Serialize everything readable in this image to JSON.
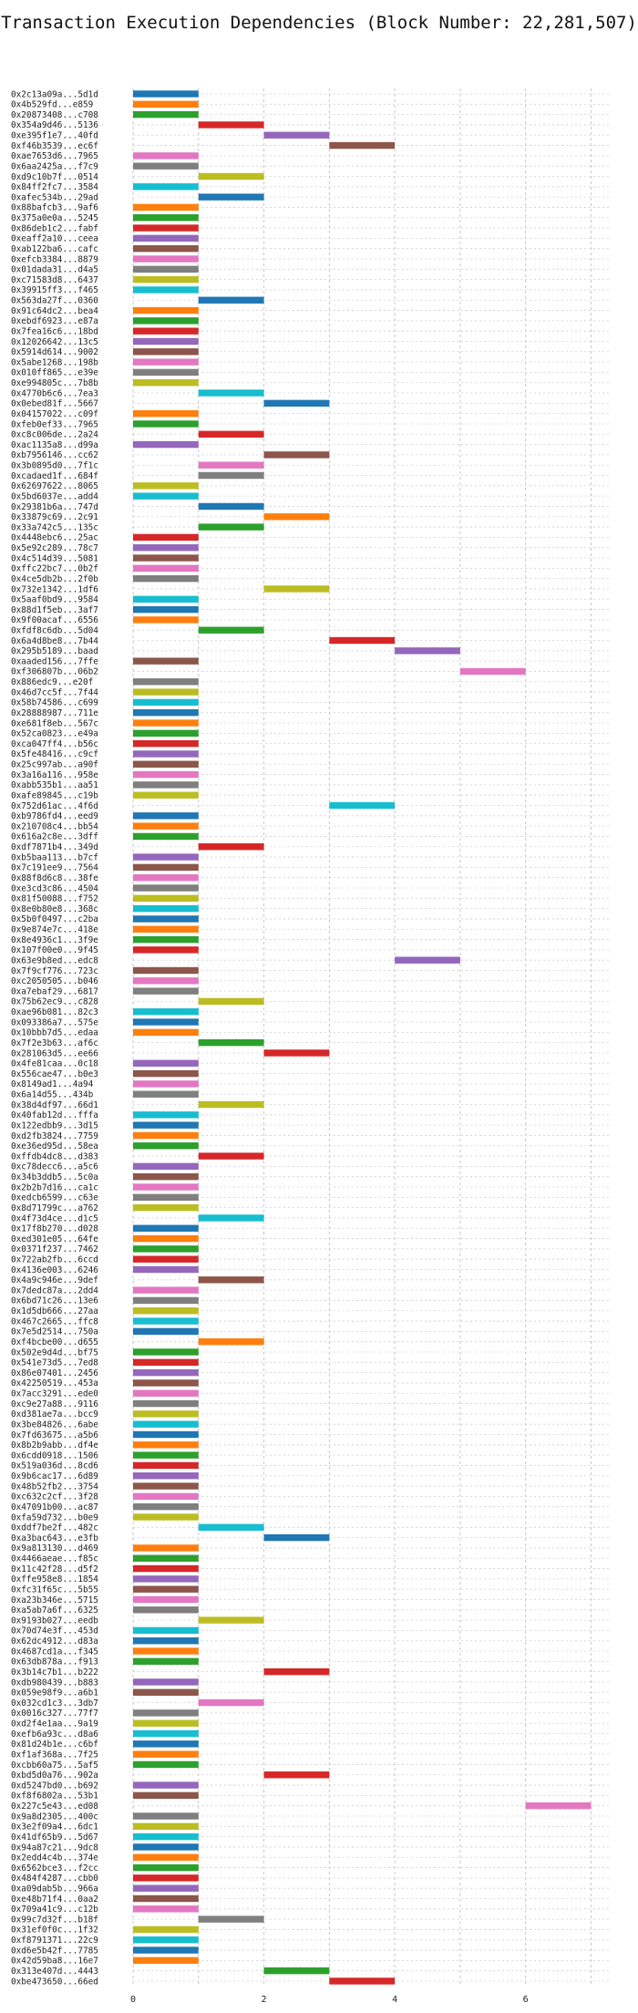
{
  "chart_data": {
    "type": "bar",
    "orientation": "horizontal",
    "title": "Transaction Execution Dependencies (Block Number: 22,281,507)",
    "xlabel": "",
    "ylabel": "",
    "xlim": [
      0,
      7.3
    ],
    "x_ticks": [
      0,
      2,
      4,
      6
    ],
    "grid": true,
    "legend": "none",
    "colors": [
      "#1f77b4",
      "#ff7f0e",
      "#2ca02c",
      "#d62728",
      "#9467bd",
      "#8c564b",
      "#e377c2",
      "#7f7f7f",
      "#bcbd22",
      "#17becf"
    ],
    "transactions": [
      {
        "label": "0x2c13a09a...5d1d",
        "start": 0,
        "end": 1
      },
      {
        "label": "0x4b529fd...e859",
        "start": 0,
        "end": 1
      },
      {
        "label": "0x20873408...c708",
        "start": 0,
        "end": 1
      },
      {
        "label": "0x354a9d46...5136",
        "start": 1,
        "end": 2
      },
      {
        "label": "0xe395f1e7...40fd",
        "start": 2,
        "end": 3
      },
      {
        "label": "0xf46b3539...ec6f",
        "start": 3,
        "end": 4
      },
      {
        "label": "0xae7653d6...7965",
        "start": 0,
        "end": 1
      },
      {
        "label": "0x6aa2425a...f7c9",
        "start": 0,
        "end": 1
      },
      {
        "label": "0xd9c10b7f...0514",
        "start": 1,
        "end": 2
      },
      {
        "label": "0x84ff2fc7...3584",
        "start": 0,
        "end": 1
      },
      {
        "label": "0xafec534b...29ad",
        "start": 1,
        "end": 2
      },
      {
        "label": "0x88bafcb3...9af6",
        "start": 0,
        "end": 1
      },
      {
        "label": "0x375a0e0a...5245",
        "start": 0,
        "end": 1
      },
      {
        "label": "0x86deb1c2...fabf",
        "start": 0,
        "end": 1
      },
      {
        "label": "0xeaff2a10...ceea",
        "start": 0,
        "end": 1
      },
      {
        "label": "0xab122ba6...cafc",
        "start": 0,
        "end": 1
      },
      {
        "label": "0xefcb3384...8879",
        "start": 0,
        "end": 1
      },
      {
        "label": "0x01dada31...d4a5",
        "start": 0,
        "end": 1
      },
      {
        "label": "0xc71583d8...6437",
        "start": 0,
        "end": 1
      },
      {
        "label": "0x39915ff3...f465",
        "start": 0,
        "end": 1
      },
      {
        "label": "0x563da27f...0360",
        "start": 1,
        "end": 2
      },
      {
        "label": "0x91c64dc2...bea4",
        "start": 0,
        "end": 1
      },
      {
        "label": "0xebdf6923...e87a",
        "start": 0,
        "end": 1
      },
      {
        "label": "0x7fea16c6...18bd",
        "start": 0,
        "end": 1
      },
      {
        "label": "0x12026642...13c5",
        "start": 0,
        "end": 1
      },
      {
        "label": "0x5914d614...9002",
        "start": 0,
        "end": 1
      },
      {
        "label": "0x5abe1268...198b",
        "start": 0,
        "end": 1
      },
      {
        "label": "0x010ff865...e39e",
        "start": 0,
        "end": 1
      },
      {
        "label": "0xe994805c...7b8b",
        "start": 0,
        "end": 1
      },
      {
        "label": "0x4770b6c6...7ea3",
        "start": 1,
        "end": 2
      },
      {
        "label": "0x0ebed81f...5667",
        "start": 2,
        "end": 3
      },
      {
        "label": "0x04157022...c09f",
        "start": 0,
        "end": 1
      },
      {
        "label": "0xfeb0ef33...7965",
        "start": 0,
        "end": 1
      },
      {
        "label": "0xc8c006de...2a24",
        "start": 1,
        "end": 2
      },
      {
        "label": "0xac1135a8...d99a",
        "start": 0,
        "end": 1
      },
      {
        "label": "0xb7956146...cc62",
        "start": 2,
        "end": 3
      },
      {
        "label": "0x3b0895d0...7f1c",
        "start": 1,
        "end": 2
      },
      {
        "label": "0xcadaed1f...684f",
        "start": 1,
        "end": 2
      },
      {
        "label": "0x62697622...8065",
        "start": 0,
        "end": 1
      },
      {
        "label": "0x5bd6037e...add4",
        "start": 0,
        "end": 1
      },
      {
        "label": "0x29381b6a...747d",
        "start": 1,
        "end": 2
      },
      {
        "label": "0x33879c69...2c91",
        "start": 2,
        "end": 3
      },
      {
        "label": "0x33a742c5...135c",
        "start": 1,
        "end": 2
      },
      {
        "label": "0x4448ebc6...25ac",
        "start": 0,
        "end": 1
      },
      {
        "label": "0x5e92c289...78c7",
        "start": 0,
        "end": 1
      },
      {
        "label": "0x4c514d39...5081",
        "start": 0,
        "end": 1
      },
      {
        "label": "0xffc22bc7...0b2f",
        "start": 0,
        "end": 1
      },
      {
        "label": "0x4ce5db2b...2f0b",
        "start": 0,
        "end": 1
      },
      {
        "label": "0x732e1342...1df6",
        "start": 2,
        "end": 3
      },
      {
        "label": "0x5aaf0bd9...9584",
        "start": 0,
        "end": 1
      },
      {
        "label": "0x88d1f5eb...3af7",
        "start": 0,
        "end": 1
      },
      {
        "label": "0x9f00acaf...6556",
        "start": 0,
        "end": 1
      },
      {
        "label": "0xfdf8c6db...5d04",
        "start": 1,
        "end": 2
      },
      {
        "label": "0x6a4d8be8...7b44",
        "start": 3,
        "end": 4
      },
      {
        "label": "0x295b5189...baad",
        "start": 4,
        "end": 5
      },
      {
        "label": "0xaaded156...7ffe",
        "start": 0,
        "end": 1
      },
      {
        "label": "0xf306807b...06b2",
        "start": 5,
        "end": 6
      },
      {
        "label": "0x886edc9...e20f",
        "start": 0,
        "end": 1
      },
      {
        "label": "0x46d7cc5f...7f44",
        "start": 0,
        "end": 1
      },
      {
        "label": "0x58b74586...c699",
        "start": 0,
        "end": 1
      },
      {
        "label": "0x28888987...711e",
        "start": 0,
        "end": 1
      },
      {
        "label": "0xe681f8eb...567c",
        "start": 0,
        "end": 1
      },
      {
        "label": "0x52ca0823...e49a",
        "start": 0,
        "end": 1
      },
      {
        "label": "0xca047ff4...b56c",
        "start": 0,
        "end": 1
      },
      {
        "label": "0x5fe48416...c9cf",
        "start": 0,
        "end": 1
      },
      {
        "label": "0x25c997ab...a90f",
        "start": 0,
        "end": 1
      },
      {
        "label": "0x3a16a116...958e",
        "start": 0,
        "end": 1
      },
      {
        "label": "0xabb535b1...aa51",
        "start": 0,
        "end": 1
      },
      {
        "label": "0xafe89845...c19b",
        "start": 0,
        "end": 1
      },
      {
        "label": "0x752d61ac...4f6d",
        "start": 3,
        "end": 4
      },
      {
        "label": "0xb9786fd4...eed9",
        "start": 0,
        "end": 1
      },
      {
        "label": "0x210708c4...bb54",
        "start": 0,
        "end": 1
      },
      {
        "label": "0x616a2c8e...3dff",
        "start": 0,
        "end": 1
      },
      {
        "label": "0xdf7871b4...349d",
        "start": 1,
        "end": 2
      },
      {
        "label": "0xb5baa113...b7cf",
        "start": 0,
        "end": 1
      },
      {
        "label": "0x7c191ee9...7564",
        "start": 0,
        "end": 1
      },
      {
        "label": "0x88f8d6c8...38fe",
        "start": 0,
        "end": 1
      },
      {
        "label": "0xe3cd3c86...4504",
        "start": 0,
        "end": 1
      },
      {
        "label": "0x81f50088...f752",
        "start": 0,
        "end": 1
      },
      {
        "label": "0x8e0b80e8...368c",
        "start": 0,
        "end": 1
      },
      {
        "label": "0x5b0f0497...c2ba",
        "start": 0,
        "end": 1
      },
      {
        "label": "0x9e874e7c...418e",
        "start": 0,
        "end": 1
      },
      {
        "label": "0x8e4936c1...3f9e",
        "start": 0,
        "end": 1
      },
      {
        "label": "0x107f00e0...9f45",
        "start": 0,
        "end": 1
      },
      {
        "label": "0x63e9b8ed...edc8",
        "start": 4,
        "end": 5
      },
      {
        "label": "0x7f9cf776...723c",
        "start": 0,
        "end": 1
      },
      {
        "label": "0xc2050505...b046",
        "start": 0,
        "end": 1
      },
      {
        "label": "0xa7ebaf29...6817",
        "start": 0,
        "end": 1
      },
      {
        "label": "0x75b62ec9...c828",
        "start": 1,
        "end": 2
      },
      {
        "label": "0xae96b081...82c3",
        "start": 0,
        "end": 1
      },
      {
        "label": "0x093386a7...575e",
        "start": 0,
        "end": 1
      },
      {
        "label": "0x10bbb7d5...edaa",
        "start": 0,
        "end": 1
      },
      {
        "label": "0x7f2e3b63...af6c",
        "start": 1,
        "end": 2
      },
      {
        "label": "0x281063d5...ee66",
        "start": 2,
        "end": 3
      },
      {
        "label": "0x4fe81caa...0c18",
        "start": 0,
        "end": 1
      },
      {
        "label": "0x556cae47...b0e3",
        "start": 0,
        "end": 1
      },
      {
        "label": "0x8149ad1...4a94",
        "start": 0,
        "end": 1
      },
      {
        "label": "0x6a14d55...434b",
        "start": 0,
        "end": 1
      },
      {
        "label": "0x38d4df97...66d1",
        "start": 1,
        "end": 2
      },
      {
        "label": "0x40fab12d...fffa",
        "start": 0,
        "end": 1
      },
      {
        "label": "0x122edbb9...3d15",
        "start": 0,
        "end": 1
      },
      {
        "label": "0xd2fb3824...7759",
        "start": 0,
        "end": 1
      },
      {
        "label": "0xe36ed95d...58ea",
        "start": 0,
        "end": 1
      },
      {
        "label": "0xffdb4dc8...d383",
        "start": 1,
        "end": 2
      },
      {
        "label": "0xc78decc6...a5c6",
        "start": 0,
        "end": 1
      },
      {
        "label": "0x34b3ddb5...5c0a",
        "start": 0,
        "end": 1
      },
      {
        "label": "0x2b2b7d16...ca1c",
        "start": 0,
        "end": 1
      },
      {
        "label": "0xedcb6599...c63e",
        "start": 0,
        "end": 1
      },
      {
        "label": "0x8d71799c...a762",
        "start": 0,
        "end": 1
      },
      {
        "label": "0x4f73d4ce...d1c5",
        "start": 1,
        "end": 2
      },
      {
        "label": "0x17f8b270...d028",
        "start": 0,
        "end": 1
      },
      {
        "label": "0xed301e05...64fe",
        "start": 0,
        "end": 1
      },
      {
        "label": "0x0371f237...7462",
        "start": 0,
        "end": 1
      },
      {
        "label": "0x722ab2fb...6ccd",
        "start": 0,
        "end": 1
      },
      {
        "label": "0x4136e003...6246",
        "start": 0,
        "end": 1
      },
      {
        "label": "0x4a9c946e...9def",
        "start": 1,
        "end": 2
      },
      {
        "label": "0x7dedc87a...2dd4",
        "start": 0,
        "end": 1
      },
      {
        "label": "0x6bd71c26...13e6",
        "start": 0,
        "end": 1
      },
      {
        "label": "0x1d5db666...27aa",
        "start": 0,
        "end": 1
      },
      {
        "label": "0x467c2665...ffc8",
        "start": 0,
        "end": 1
      },
      {
        "label": "0x7e5d2514...750a",
        "start": 0,
        "end": 1
      },
      {
        "label": "0xf4bcbe00...d655",
        "start": 1,
        "end": 2
      },
      {
        "label": "0x502e9d4d...bf75",
        "start": 0,
        "end": 1
      },
      {
        "label": "0x541e73d5...7ed8",
        "start": 0,
        "end": 1
      },
      {
        "label": "0x86e07401...2456",
        "start": 0,
        "end": 1
      },
      {
        "label": "0x42250519...453a",
        "start": 0,
        "end": 1
      },
      {
        "label": "0x7acc3291...ede0",
        "start": 0,
        "end": 1
      },
      {
        "label": "0xc9e27a88...9116",
        "start": 0,
        "end": 1
      },
      {
        "label": "0xd381ae7a...bcc9",
        "start": 0,
        "end": 1
      },
      {
        "label": "0x3be84826...6abe",
        "start": 0,
        "end": 1
      },
      {
        "label": "0x7fd63675...a5b6",
        "start": 0,
        "end": 1
      },
      {
        "label": "0x8b2b9abb...df4e",
        "start": 0,
        "end": 1
      },
      {
        "label": "0x6cdd0918...1506",
        "start": 0,
        "end": 1
      },
      {
        "label": "0x519a036d...8cd6",
        "start": 0,
        "end": 1
      },
      {
        "label": "0x9b6cac17...6d89",
        "start": 0,
        "end": 1
      },
      {
        "label": "0x48b52fb2...3754",
        "start": 0,
        "end": 1
      },
      {
        "label": "0xc632c2cf...3f28",
        "start": 0,
        "end": 1
      },
      {
        "label": "0x47091b00...ac87",
        "start": 0,
        "end": 1
      },
      {
        "label": "0xfa59d732...b0e9",
        "start": 0,
        "end": 1
      },
      {
        "label": "0xddf7be2f...482c",
        "start": 1,
        "end": 2
      },
      {
        "label": "0xa3bac643...e3fb",
        "start": 2,
        "end": 3
      },
      {
        "label": "0x9a813130...d469",
        "start": 0,
        "end": 1
      },
      {
        "label": "0x4466aeae...f85c",
        "start": 0,
        "end": 1
      },
      {
        "label": "0x11c42f28...d5f2",
        "start": 0,
        "end": 1
      },
      {
        "label": "0xffe958e8...1854",
        "start": 0,
        "end": 1
      },
      {
        "label": "0xfc31f65c...5b55",
        "start": 0,
        "end": 1
      },
      {
        "label": "0xa23b346e...5715",
        "start": 0,
        "end": 1
      },
      {
        "label": "0xa5ab7a6f...6325",
        "start": 0,
        "end": 1
      },
      {
        "label": "0x9193b027...eedb",
        "start": 1,
        "end": 2
      },
      {
        "label": "0x70d74e3f...453d",
        "start": 0,
        "end": 1
      },
      {
        "label": "0x62dc4912...d83a",
        "start": 0,
        "end": 1
      },
      {
        "label": "0x4687cd1a...f345",
        "start": 0,
        "end": 1
      },
      {
        "label": "0x63db878a...f913",
        "start": 0,
        "end": 1
      },
      {
        "label": "0x3b14c7b1...b222",
        "start": 2,
        "end": 3
      },
      {
        "label": "0xdb980439...b883",
        "start": 0,
        "end": 1
      },
      {
        "label": "0x059e98f9...a6b1",
        "start": 0,
        "end": 1
      },
      {
        "label": "0x032cd1c3...3db7",
        "start": 1,
        "end": 2
      },
      {
        "label": "0x0016c327...77f7",
        "start": 0,
        "end": 1
      },
      {
        "label": "0xd2f4e1aa...9a19",
        "start": 0,
        "end": 1
      },
      {
        "label": "0xefb6a93c...d8a6",
        "start": 0,
        "end": 1
      },
      {
        "label": "0x81d24b1e...c6bf",
        "start": 0,
        "end": 1
      },
      {
        "label": "0xf1af368a...7f25",
        "start": 0,
        "end": 1
      },
      {
        "label": "0xcbb60a75...5af5",
        "start": 0,
        "end": 1
      },
      {
        "label": "0xbd5d0a76...902a",
        "start": 2,
        "end": 3
      },
      {
        "label": "0xd5247bd0...b692",
        "start": 0,
        "end": 1
      },
      {
        "label": "0xf8f6802a...53b1",
        "start": 0,
        "end": 1
      },
      {
        "label": "0x227c5e43...ed08",
        "start": 6,
        "end": 7
      },
      {
        "label": "0x9a8d2305...400c",
        "start": 0,
        "end": 1
      },
      {
        "label": "0x3e2f09a4...6dc1",
        "start": 0,
        "end": 1
      },
      {
        "label": "0x41df65b9...5d67",
        "start": 0,
        "end": 1
      },
      {
        "label": "0x94a87c21...9dc8",
        "start": 0,
        "end": 1
      },
      {
        "label": "0x2edd4c4b...374e",
        "start": 0,
        "end": 1
      },
      {
        "label": "0x6562bce3...f2cc",
        "start": 0,
        "end": 1
      },
      {
        "label": "0x484f4287...cbb0",
        "start": 0,
        "end": 1
      },
      {
        "label": "0xa09dab5b...966a",
        "start": 0,
        "end": 1
      },
      {
        "label": "0xe48b71f4...0aa2",
        "start": 0,
        "end": 1
      },
      {
        "label": "0x709a41c9...c12b",
        "start": 0,
        "end": 1
      },
      {
        "label": "0x99c7d32f...b18f",
        "start": 1,
        "end": 2
      },
      {
        "label": "0x31ef0f0c...1f32",
        "start": 0,
        "end": 1
      },
      {
        "label": "0xf8791371...22c9",
        "start": 0,
        "end": 1
      },
      {
        "label": "0xd6e5b42f...7785",
        "start": 0,
        "end": 1
      },
      {
        "label": "0x42d59ba8...16e7",
        "start": 0,
        "end": 1
      },
      {
        "label": "0x313e407d...4443",
        "start": 2,
        "end": 3
      },
      {
        "label": "0xbe473650...66ed",
        "start": 3,
        "end": 4
      }
    ]
  }
}
